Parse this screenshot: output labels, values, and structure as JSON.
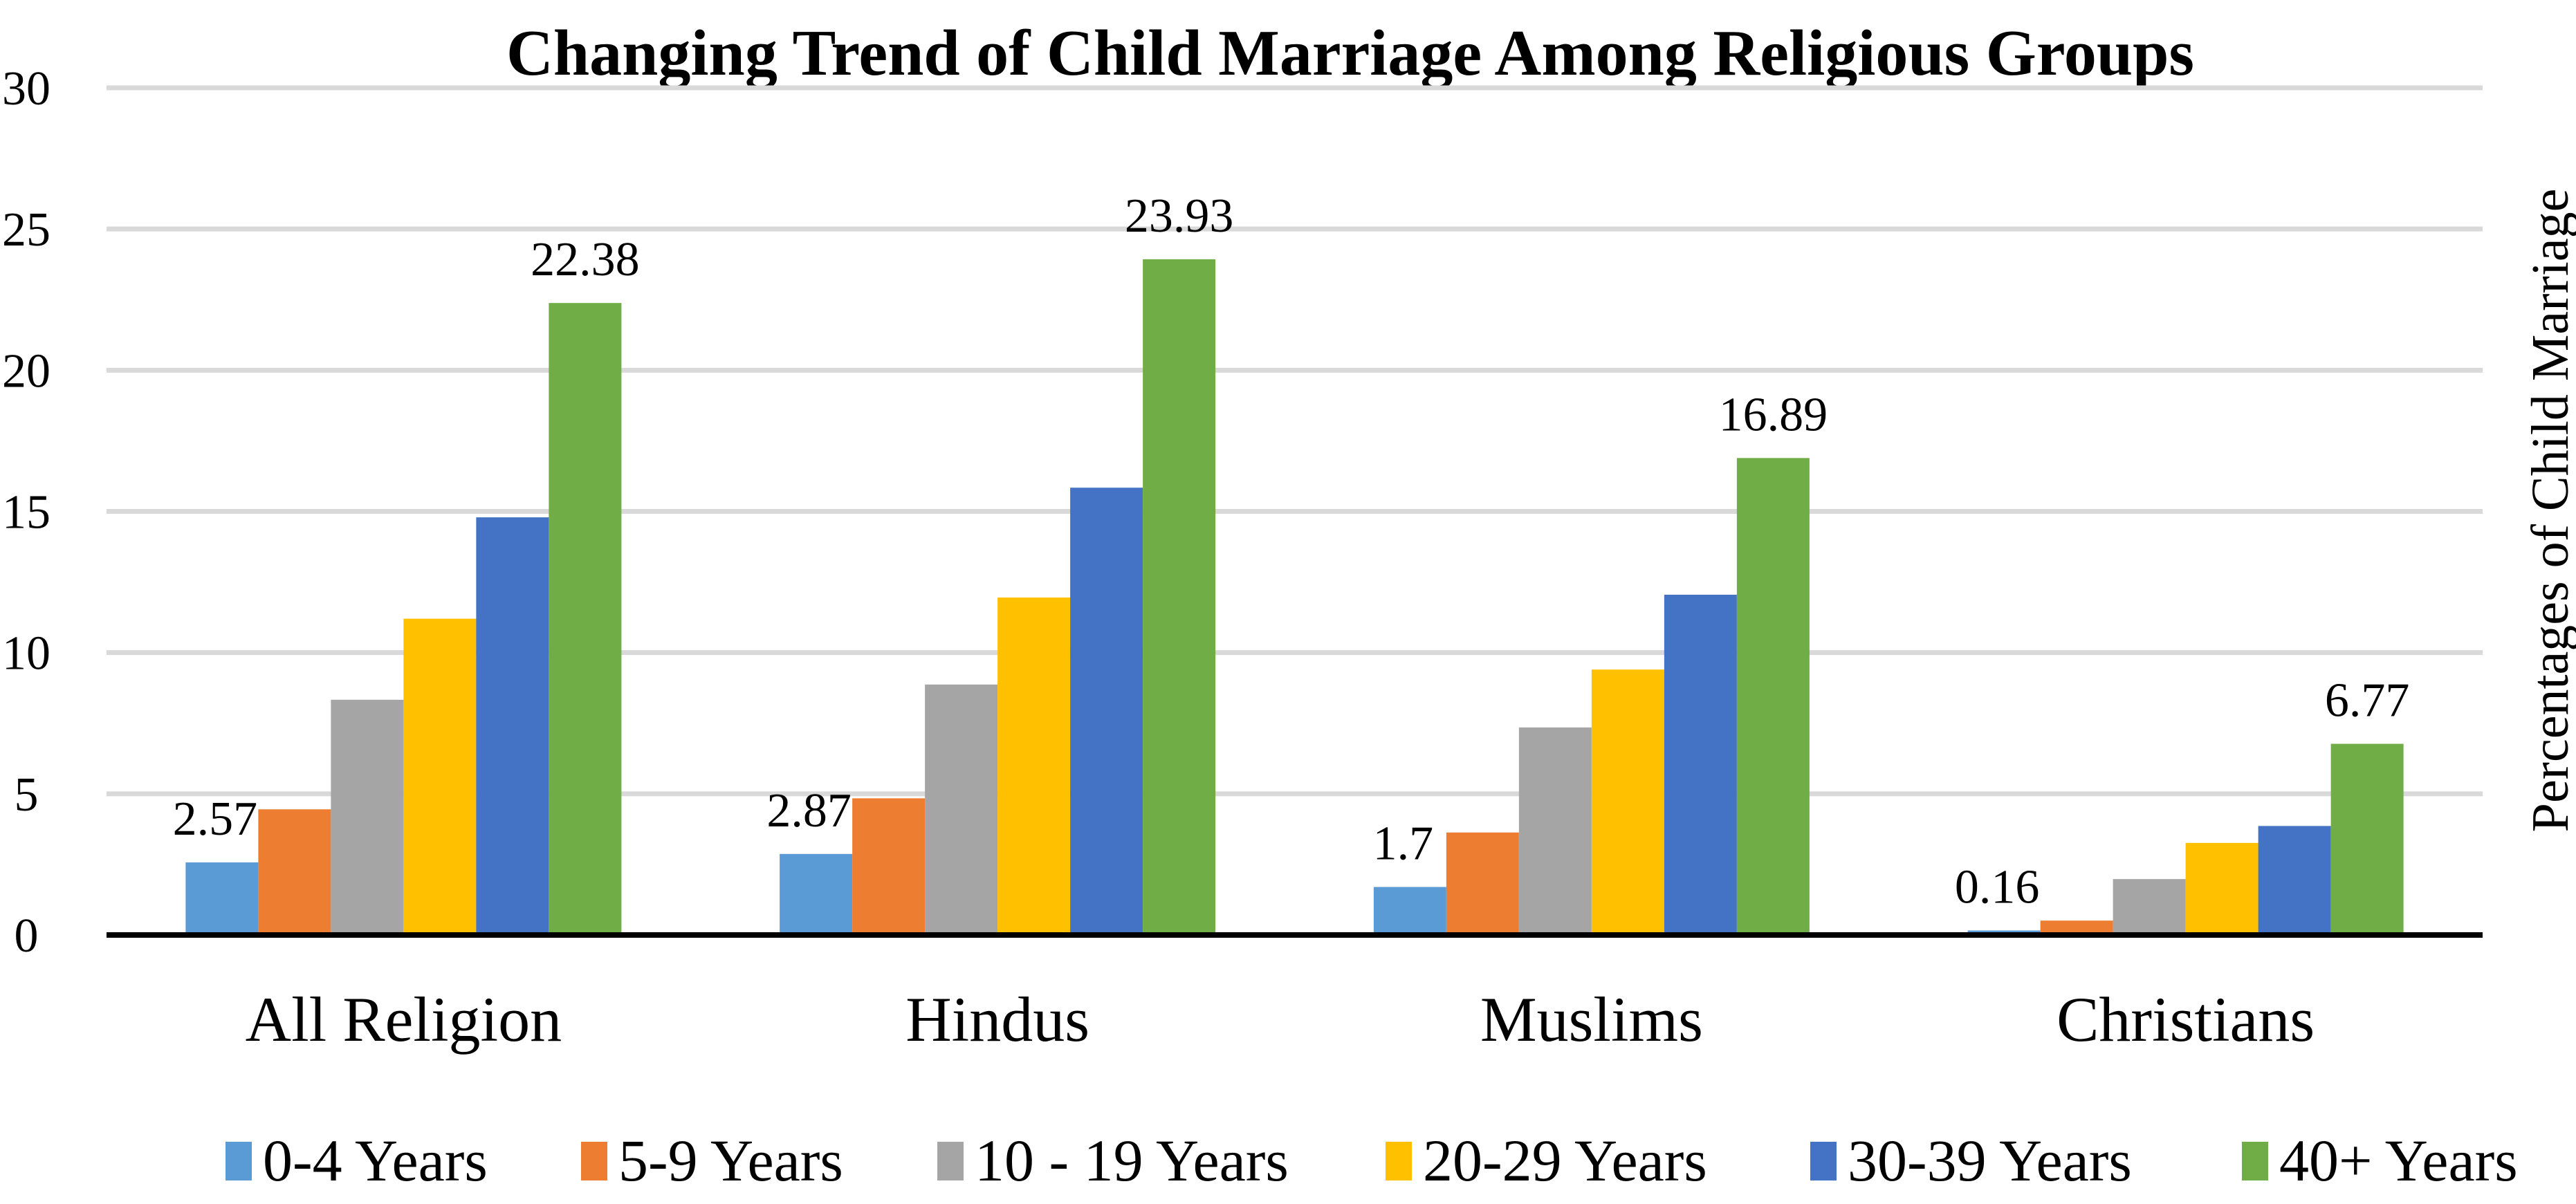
{
  "chart_data": {
    "type": "bar",
    "title": "Changing Trend of Child Marriage Among Religious Groups",
    "xlabel": "",
    "ylabel": "Percentages of Child Marriage",
    "ylim": [
      0,
      30
    ],
    "yticks": [
      0,
      5,
      10,
      15,
      20,
      25,
      30
    ],
    "grid": true,
    "legend_position": "bottom",
    "categories": [
      "All Religion",
      "Hindus",
      "Muslims",
      "Christians"
    ],
    "series": [
      {
        "name": "0-4 Years",
        "color": "#5B9BD5",
        "values": [
          2.57,
          2.87,
          1.7,
          0.16
        ],
        "labels": [
          "2.57",
          "2.87",
          "1.7",
          "0.16"
        ]
      },
      {
        "name": "5-9 Years",
        "color": "#ED7D31",
        "values": [
          4.45,
          4.84,
          3.63,
          0.51
        ],
        "labels": null
      },
      {
        "name": "10 - 19 Years",
        "color": "#A5A5A5",
        "values": [
          8.33,
          8.87,
          7.35,
          1.98
        ],
        "labels": null
      },
      {
        "name": "20-29 Years",
        "color": "#FFC000",
        "values": [
          11.2,
          11.95,
          9.4,
          3.26
        ],
        "labels": null
      },
      {
        "name": "30-39 Years",
        "color": "#4472C4",
        "values": [
          14.79,
          15.84,
          12.05,
          3.86
        ],
        "labels": null
      },
      {
        "name": "40+ Years",
        "color": "#70AD47",
        "values": [
          22.38,
          23.93,
          16.89,
          6.77
        ],
        "labels": [
          "22.38",
          "23.93",
          "16.89",
          "6.77"
        ]
      }
    ]
  },
  "colors": {
    "gridline": "#D9D9D9",
    "axis": "#000000",
    "background": "#FFFFFF"
  }
}
